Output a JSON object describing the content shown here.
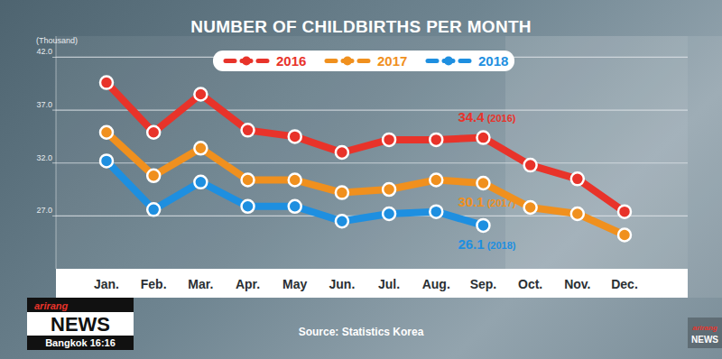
{
  "chart_data": {
    "type": "line",
    "title": "NUMBER OF CHILDBIRTHS PER MONTH",
    "y_label": "(Thousand)",
    "source": "Source: Statistics Korea",
    "categories": [
      "Jan.",
      "Feb.",
      "Mar.",
      "Apr.",
      "May",
      "Jun.",
      "Jul.",
      "Aug.",
      "Sep.",
      "Oct.",
      "Nov.",
      "Dec."
    ],
    "series": [
      {
        "name": "2016",
        "color": "#e8332a",
        "values": [
          39.6,
          34.9,
          38.5,
          35.1,
          34.5,
          33.0,
          34.2,
          34.2,
          34.4,
          31.8,
          30.5,
          27.4
        ],
        "value_labels": [
          null,
          null,
          null,
          null,
          null,
          null,
          null,
          null,
          "34.4 (2016)",
          null,
          null,
          null
        ]
      },
      {
        "name": "2017",
        "color": "#f0901e",
        "values": [
          34.9,
          30.8,
          33.4,
          30.4,
          30.4,
          29.2,
          29.5,
          30.4,
          30.1,
          27.8,
          27.2,
          25.2
        ],
        "value_labels": [
          null,
          null,
          null,
          null,
          null,
          null,
          null,
          null,
          "30.1 (2017)",
          null,
          null,
          null
        ]
      },
      {
        "name": "2018",
        "color": "#1e8fe0",
        "values": [
          32.2,
          27.6,
          30.2,
          27.9,
          27.9,
          26.5,
          27.2,
          27.4,
          26.1,
          null,
          null,
          null
        ],
        "value_labels": [
          null,
          null,
          null,
          null,
          null,
          null,
          null,
          null,
          "26.1 (2018)",
          null,
          null,
          null
        ]
      }
    ],
    "ylim": [
      22,
      44
    ],
    "yticks": [
      {
        "value": 27,
        "label": "27.0"
      },
      {
        "value": 32,
        "label": "32.0"
      },
      {
        "value": 37,
        "label": "37.0"
      },
      {
        "value": 42,
        "label": "42.0"
      }
    ],
    "grid": true,
    "legend": "top",
    "marker": "circle",
    "line_style": "solid"
  },
  "overlay": {
    "logo": "arirang",
    "brand": "NEWS",
    "location_time": "Bangkok 16:16",
    "corner_logo": "arirang",
    "corner_brand": "NEWS"
  }
}
